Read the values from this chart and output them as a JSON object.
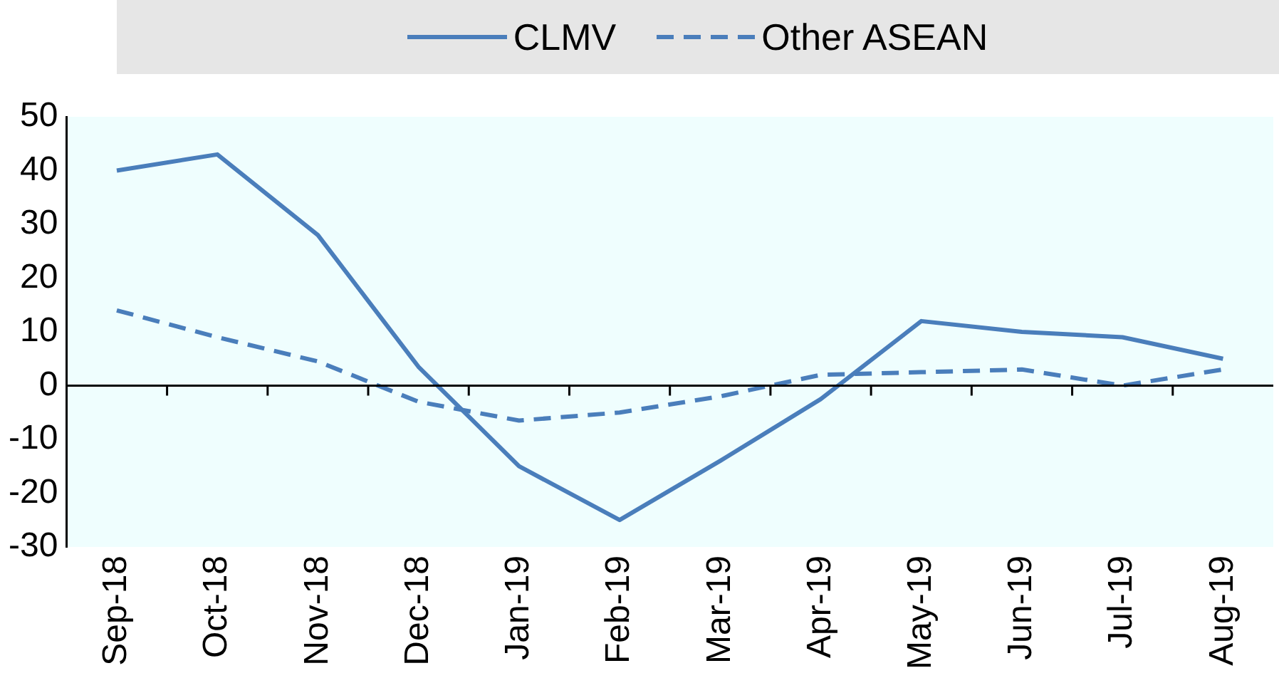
{
  "chart_data": {
    "type": "line",
    "categories": [
      "Sep-18",
      "Oct-18",
      "Nov-18",
      "Dec-18",
      "Jan-19",
      "Feb-19",
      "Mar-19",
      "Apr-19",
      "May-19",
      "Jun-19",
      "Jul-19",
      "Aug-19"
    ],
    "series": [
      {
        "name": "CLMV",
        "color": "#4a7ebb",
        "line_style": "solid",
        "values": [
          40,
          43,
          28,
          3.5,
          -15,
          -25,
          -14,
          -2.5,
          12,
          10,
          9,
          5
        ]
      },
      {
        "name": "Other ASEAN",
        "color": "#4a7ebb",
        "line_style": "dashed",
        "values": [
          14,
          9,
          4.5,
          -3,
          -6.5,
          -5,
          -2,
          2,
          2.5,
          3,
          0,
          3
        ]
      }
    ],
    "ylim": [
      -30,
      50
    ],
    "yticks": [
      -30,
      -20,
      -10,
      0,
      10,
      20,
      30,
      40,
      50
    ],
    "grid": false,
    "legend": "top",
    "marker": "none",
    "ref_lines": [
      {
        "axis": "y",
        "value": 0,
        "color": "#000000"
      }
    ]
  }
}
